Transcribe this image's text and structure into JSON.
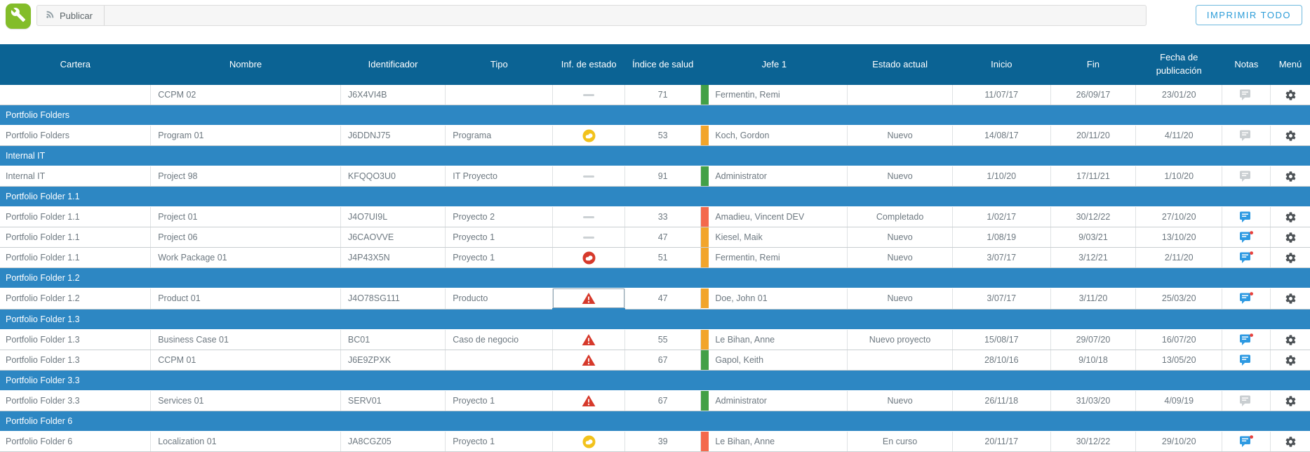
{
  "toolbar": {
    "publish_label": "Publicar",
    "print_all_label": "IMPRIMIR TODO"
  },
  "colors": {
    "header_bg": "#0b6394",
    "group_row_bg": "#2d87c3",
    "accent_green_tile": "#83bd2a",
    "print_button_accent": "#2b9cd8",
    "health_green": "#43a047",
    "health_orange": "#f2a52b",
    "health_red": "#f4694c",
    "status_yellow": "#f2c21c",
    "status_red": "#d6392b",
    "note_blue": "#2e9ae2",
    "note_gray": "#c9ced1",
    "note_alert_dot": "#e8413c",
    "gear_gray": "#4d5256"
  },
  "icons": {
    "app_tile": "wrench-icon",
    "publish": "rss-feed-icon",
    "status_dash": "no-status-icon",
    "status_yellow": "status-warning-cloud-icon",
    "status_red": "status-critical-cloud-icon",
    "status_triangle": "status-alert-triangle-icon",
    "note": "note-comment-icon",
    "menu": "gear-icon"
  },
  "table": {
    "columns": [
      "Cartera",
      "Nombre",
      "Identificador",
      "Tipo",
      "Inf. de estado",
      "Índice de salud",
      "Jefe 1",
      "Estado actual",
      "Inicio",
      "Fin",
      "Fecha de publicación",
      "Notas",
      "Menú"
    ],
    "rows": [
      {
        "type": "data",
        "cartera": "",
        "nombre": "CCPM 02",
        "identificador": "J6X4VI4B",
        "tipo": "",
        "status": "dash",
        "salud": "71",
        "salud_color": "green",
        "jefe": "Fermentin, Remi",
        "estado": "",
        "inicio": "11/07/17",
        "fin": "26/09/17",
        "publicacion": "23/01/20",
        "nota": "gray"
      },
      {
        "type": "group",
        "label": "Portfolio Folders"
      },
      {
        "type": "data",
        "cartera": "Portfolio Folders",
        "nombre": "Program 01",
        "identificador": "J6DDNJ75",
        "tipo": "Programa",
        "status": "yellow",
        "salud": "53",
        "salud_color": "orange",
        "jefe": "Koch, Gordon",
        "estado": "Nuevo",
        "inicio": "14/08/17",
        "fin": "20/11/20",
        "publicacion": "4/11/20",
        "nota": "gray"
      },
      {
        "type": "group",
        "label": "Internal IT"
      },
      {
        "type": "data",
        "cartera": "Internal IT",
        "nombre": "Project 98",
        "identificador": "KFQQO3U0",
        "tipo": "IT Proyecto",
        "status": "dash",
        "salud": "91",
        "salud_color": "green",
        "jefe": "Administrator",
        "estado": "Nuevo",
        "inicio": "1/10/20",
        "fin": "17/11/21",
        "publicacion": "1/10/20",
        "nota": "gray"
      },
      {
        "type": "group",
        "label": "Portfolio Folder 1.1"
      },
      {
        "type": "data",
        "cartera": "Portfolio Folder 1.1",
        "nombre": "Project 01",
        "identificador": "J4O7UI9L",
        "tipo": "Proyecto 2",
        "status": "dash",
        "salud": "33",
        "salud_color": "red",
        "jefe": "Amadieu, Vincent DEV",
        "estado": "Completado",
        "inicio": "1/02/17",
        "fin": "30/12/22",
        "publicacion": "27/10/20",
        "nota": "blue"
      },
      {
        "type": "data",
        "cartera": "Portfolio Folder 1.1",
        "nombre": "Project 06",
        "identificador": "J6CAOVVE",
        "tipo": "Proyecto 1",
        "status": "dash",
        "salud": "47",
        "salud_color": "orange",
        "jefe": "Kiesel, Maik",
        "estado": "Nuevo",
        "inicio": "1/08/19",
        "fin": "9/03/21",
        "publicacion": "13/10/20",
        "nota": "blue-dot"
      },
      {
        "type": "data",
        "cartera": "Portfolio Folder 1.1",
        "nombre": "Work Package 01",
        "identificador": "J4P43X5N",
        "tipo": "Proyecto 1",
        "status": "red",
        "salud": "51",
        "salud_color": "orange",
        "jefe": "Fermentin, Remi",
        "estado": "Nuevo",
        "inicio": "3/07/17",
        "fin": "3/12/21",
        "publicacion": "2/11/20",
        "nota": "blue-dot"
      },
      {
        "type": "group",
        "label": "Portfolio Folder 1.2"
      },
      {
        "type": "data",
        "cartera": "Portfolio Folder 1.2",
        "nombre": "Product 01",
        "identificador": "J4O78SG111",
        "tipo": "Producto",
        "status": "triangle",
        "status_selected": true,
        "salud": "47",
        "salud_color": "orange",
        "jefe": "Doe, John 01",
        "estado": "Nuevo",
        "inicio": "3/07/17",
        "fin": "3/11/20",
        "publicacion": "25/03/20",
        "nota": "blue-dot"
      },
      {
        "type": "group",
        "label": "Portfolio Folder 1.3"
      },
      {
        "type": "data",
        "cartera": "Portfolio Folder 1.3",
        "nombre": "Business Case 01",
        "identificador": "BC01",
        "tipo": "Caso de negocio",
        "status": "triangle",
        "salud": "55",
        "salud_color": "orange",
        "jefe": "Le Bihan, Anne",
        "estado": "Nuevo proyecto",
        "inicio": "15/08/17",
        "fin": "29/07/20",
        "publicacion": "16/07/20",
        "nota": "blue-dot"
      },
      {
        "type": "data",
        "cartera": "Portfolio Folder 1.3",
        "nombre": "CCPM 01",
        "identificador": "J6E9ZPXK",
        "tipo": "",
        "status": "triangle",
        "salud": "67",
        "salud_color": "green",
        "jefe": "Gapol, Keith",
        "estado": "",
        "inicio": "28/10/16",
        "fin": "9/10/18",
        "publicacion": "13/05/20",
        "nota": "blue"
      },
      {
        "type": "group",
        "label": "Portfolio Folder 3.3"
      },
      {
        "type": "data",
        "cartera": "Portfolio Folder 3.3",
        "nombre": "Services 01",
        "identificador": "SERV01",
        "tipo": "Proyecto 1",
        "status": "triangle",
        "salud": "67",
        "salud_color": "green",
        "jefe": "Administrator",
        "estado": "Nuevo",
        "inicio": "26/11/18",
        "fin": "31/03/20",
        "publicacion": "4/09/19",
        "nota": "gray"
      },
      {
        "type": "group",
        "label": "Portfolio Folder 6"
      },
      {
        "type": "data",
        "cartera": "Portfolio Folder 6",
        "nombre": "Localization 01",
        "identificador": "JA8CGZ05",
        "tipo": "Proyecto 1",
        "status": "yellow",
        "salud": "39",
        "salud_color": "red",
        "jefe": "Le Bihan, Anne",
        "estado": "En curso",
        "inicio": "20/11/17",
        "fin": "30/12/22",
        "publicacion": "29/10/20",
        "nota": "blue-dot"
      }
    ]
  }
}
